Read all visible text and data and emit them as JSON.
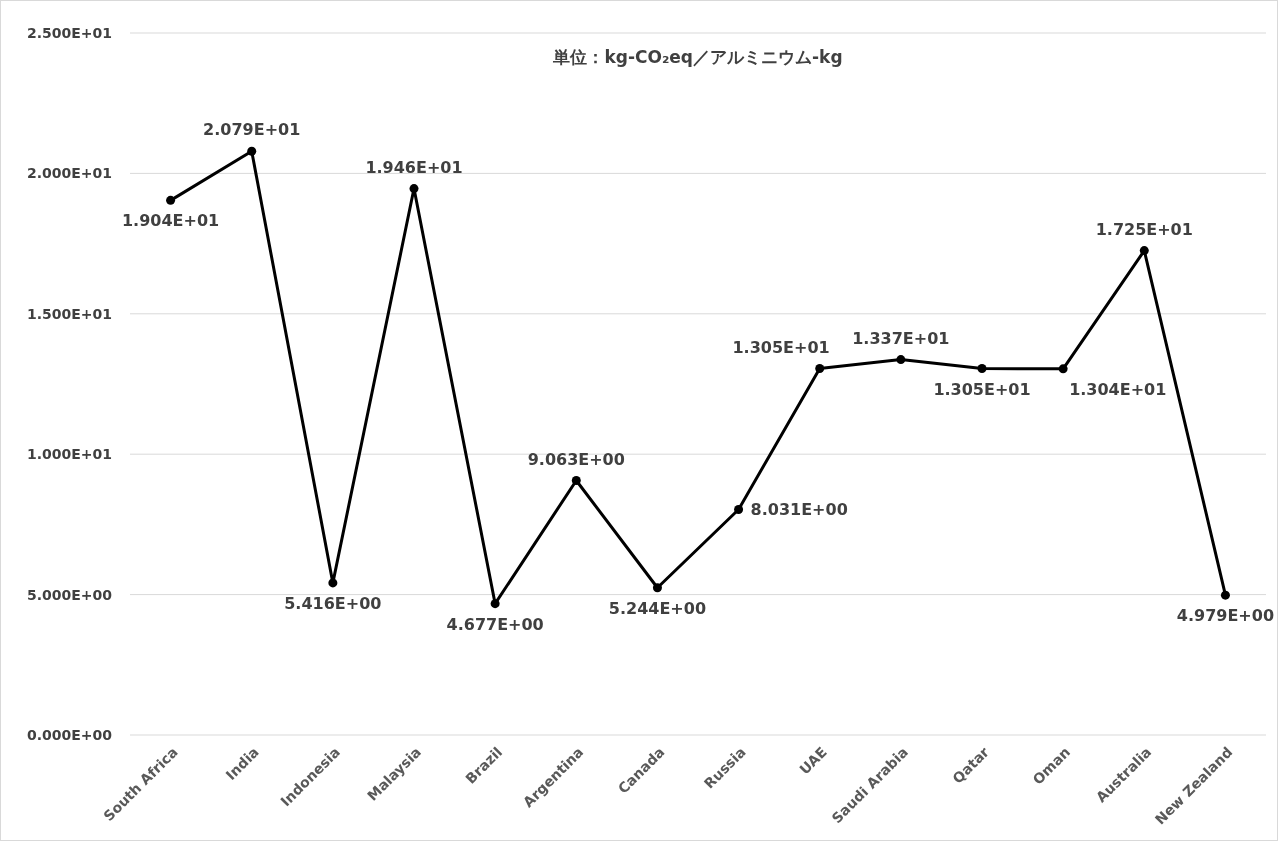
{
  "chart_data": {
    "type": "line",
    "title": "単位：kg-CO₂eq／アルミニウム-kg",
    "categories": [
      "South Africa",
      "India",
      "Indonesia",
      "Malaysia",
      "Brazil",
      "Argentina",
      "Canada",
      "Russia",
      "UAE",
      "Saudi Arabia",
      "Qatar",
      "Oman",
      "Australia",
      "New Zealand"
    ],
    "series": [
      {
        "color": "#000000",
        "values": [
          19.04,
          20.79,
          5.416,
          19.46,
          4.677,
          9.063,
          5.244,
          8.031,
          13.05,
          13.37,
          13.05,
          13.04,
          17.25,
          4.979
        ],
        "value_labels": [
          "1.904E+01",
          "2.079E+01",
          "5.416E+00",
          "1.946E+01",
          "4.677E+00",
          "9.063E+00",
          "5.244E+00",
          "8.031E+00",
          "1.305E+01",
          "1.337E+01",
          "1.305E+01",
          "1.304E+01",
          "1.725E+01",
          "4.979E+00"
        ]
      }
    ],
    "ylim": [
      0,
      25
    ],
    "yticks": [
      {
        "value": 0,
        "label": "0.000E+00"
      },
      {
        "value": 5,
        "label": "5.000E+00"
      },
      {
        "value": 10,
        "label": "1.000E+01"
      },
      {
        "value": 15,
        "label": "1.500E+01"
      },
      {
        "value": 20,
        "label": "2.000E+01"
      },
      {
        "value": 25,
        "label": "2.500E+01"
      }
    ],
    "grid": "y",
    "marker": "circle",
    "line_style": "solid"
  }
}
